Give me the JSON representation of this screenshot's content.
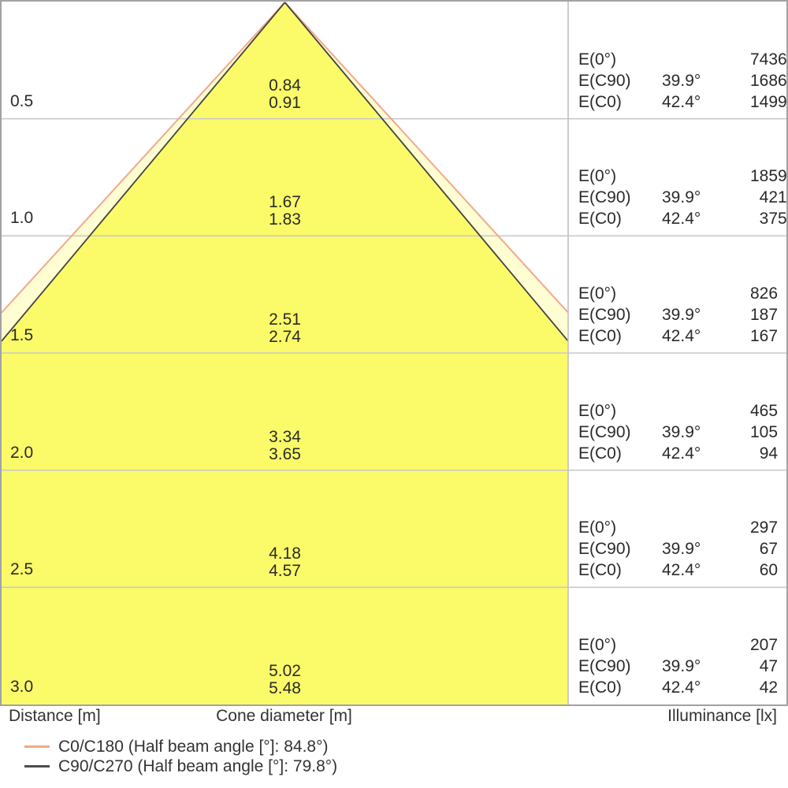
{
  "table": {
    "e_labels": {
      "e0": "E(0°)",
      "ec90": "E(C90)",
      "ec0": "E(C0)"
    },
    "rows": [
      {
        "distance": "0.5",
        "d_c90": "0.84",
        "d_c0": "0.91",
        "e0": "7436",
        "ec90_angle": "39.9°",
        "ec90": "1686",
        "ec0_angle": "42.4°",
        "ec0": "1499"
      },
      {
        "distance": "1.0",
        "d_c90": "1.67",
        "d_c0": "1.83",
        "e0": "1859",
        "ec90_angle": "39.9°",
        "ec90": "421",
        "ec0_angle": "42.4°",
        "ec0": "375"
      },
      {
        "distance": "1.5",
        "d_c90": "2.51",
        "d_c0": "2.74",
        "e0": "826",
        "ec90_angle": "39.9°",
        "ec90": "187",
        "ec0_angle": "42.4°",
        "ec0": "167"
      },
      {
        "distance": "2.0",
        "d_c90": "3.34",
        "d_c0": "3.65",
        "e0": "465",
        "ec90_angle": "39.9°",
        "ec90": "105",
        "ec0_angle": "42.4°",
        "ec0": "94"
      },
      {
        "distance": "2.5",
        "d_c90": "4.18",
        "d_c0": "4.57",
        "e0": "297",
        "ec90_angle": "39.9°",
        "ec90": "67",
        "ec0_angle": "42.4°",
        "ec0": "60"
      },
      {
        "distance": "3.0",
        "d_c90": "5.02",
        "d_c0": "5.48",
        "e0": "207",
        "ec90_angle": "39.9°",
        "ec90": "47",
        "ec0_angle": "42.4°",
        "ec0": "42"
      }
    ]
  },
  "footer": {
    "distance_axis": "Distance [m]",
    "cone_axis": "Cone diameter [m]",
    "illuminance_axis": "Illuminance [lx]"
  },
  "legend": [
    {
      "label": "C0/C180 (Half beam angle [°]: 84.8°)",
      "color": "#F3A88B"
    },
    {
      "label": "C90/C270 (Half beam angle [°]: 79.8°)",
      "color": "#4d4d4d"
    }
  ],
  "chart_data": {
    "type": "area",
    "title": "Luminaire light cone diagram",
    "xlabel": "Cone diameter [m]",
    "ylabel_left": "Distance [m]",
    "ylabel_right": "Illuminance [lx]",
    "distances_m": [
      0.5,
      1.0,
      1.5,
      2.0,
      2.5,
      3.0
    ],
    "cone_diameter_c90_m": [
      0.84,
      1.67,
      2.51,
      3.34,
      4.18,
      5.02
    ],
    "cone_diameter_c0_m": [
      0.91,
      1.83,
      2.74,
      3.65,
      4.57,
      5.48
    ],
    "illuminance_e0_lx": [
      7436,
      1859,
      826,
      465,
      297,
      207
    ],
    "illuminance_ec90_lx": [
      1686,
      421,
      187,
      105,
      67,
      47
    ],
    "illuminance_ec0_lx": [
      1499,
      375,
      167,
      94,
      60,
      42
    ],
    "half_beam_angle_c0_deg": 84.8,
    "half_beam_angle_c90_deg": 79.8,
    "e_c0_half_angle_deg": 42.4,
    "e_c90_half_angle_deg": 39.9,
    "colors": {
      "inner_fill": "#FBFB69",
      "outer_fill": "#FEFED2",
      "c0_line": "#F3A88B",
      "c90_line": "#424242",
      "gridline": "#c9c9c9",
      "divider": "#c6c6c6",
      "border": "#a2a2a2"
    },
    "legend_position": "bottom-left",
    "grid": true
  }
}
